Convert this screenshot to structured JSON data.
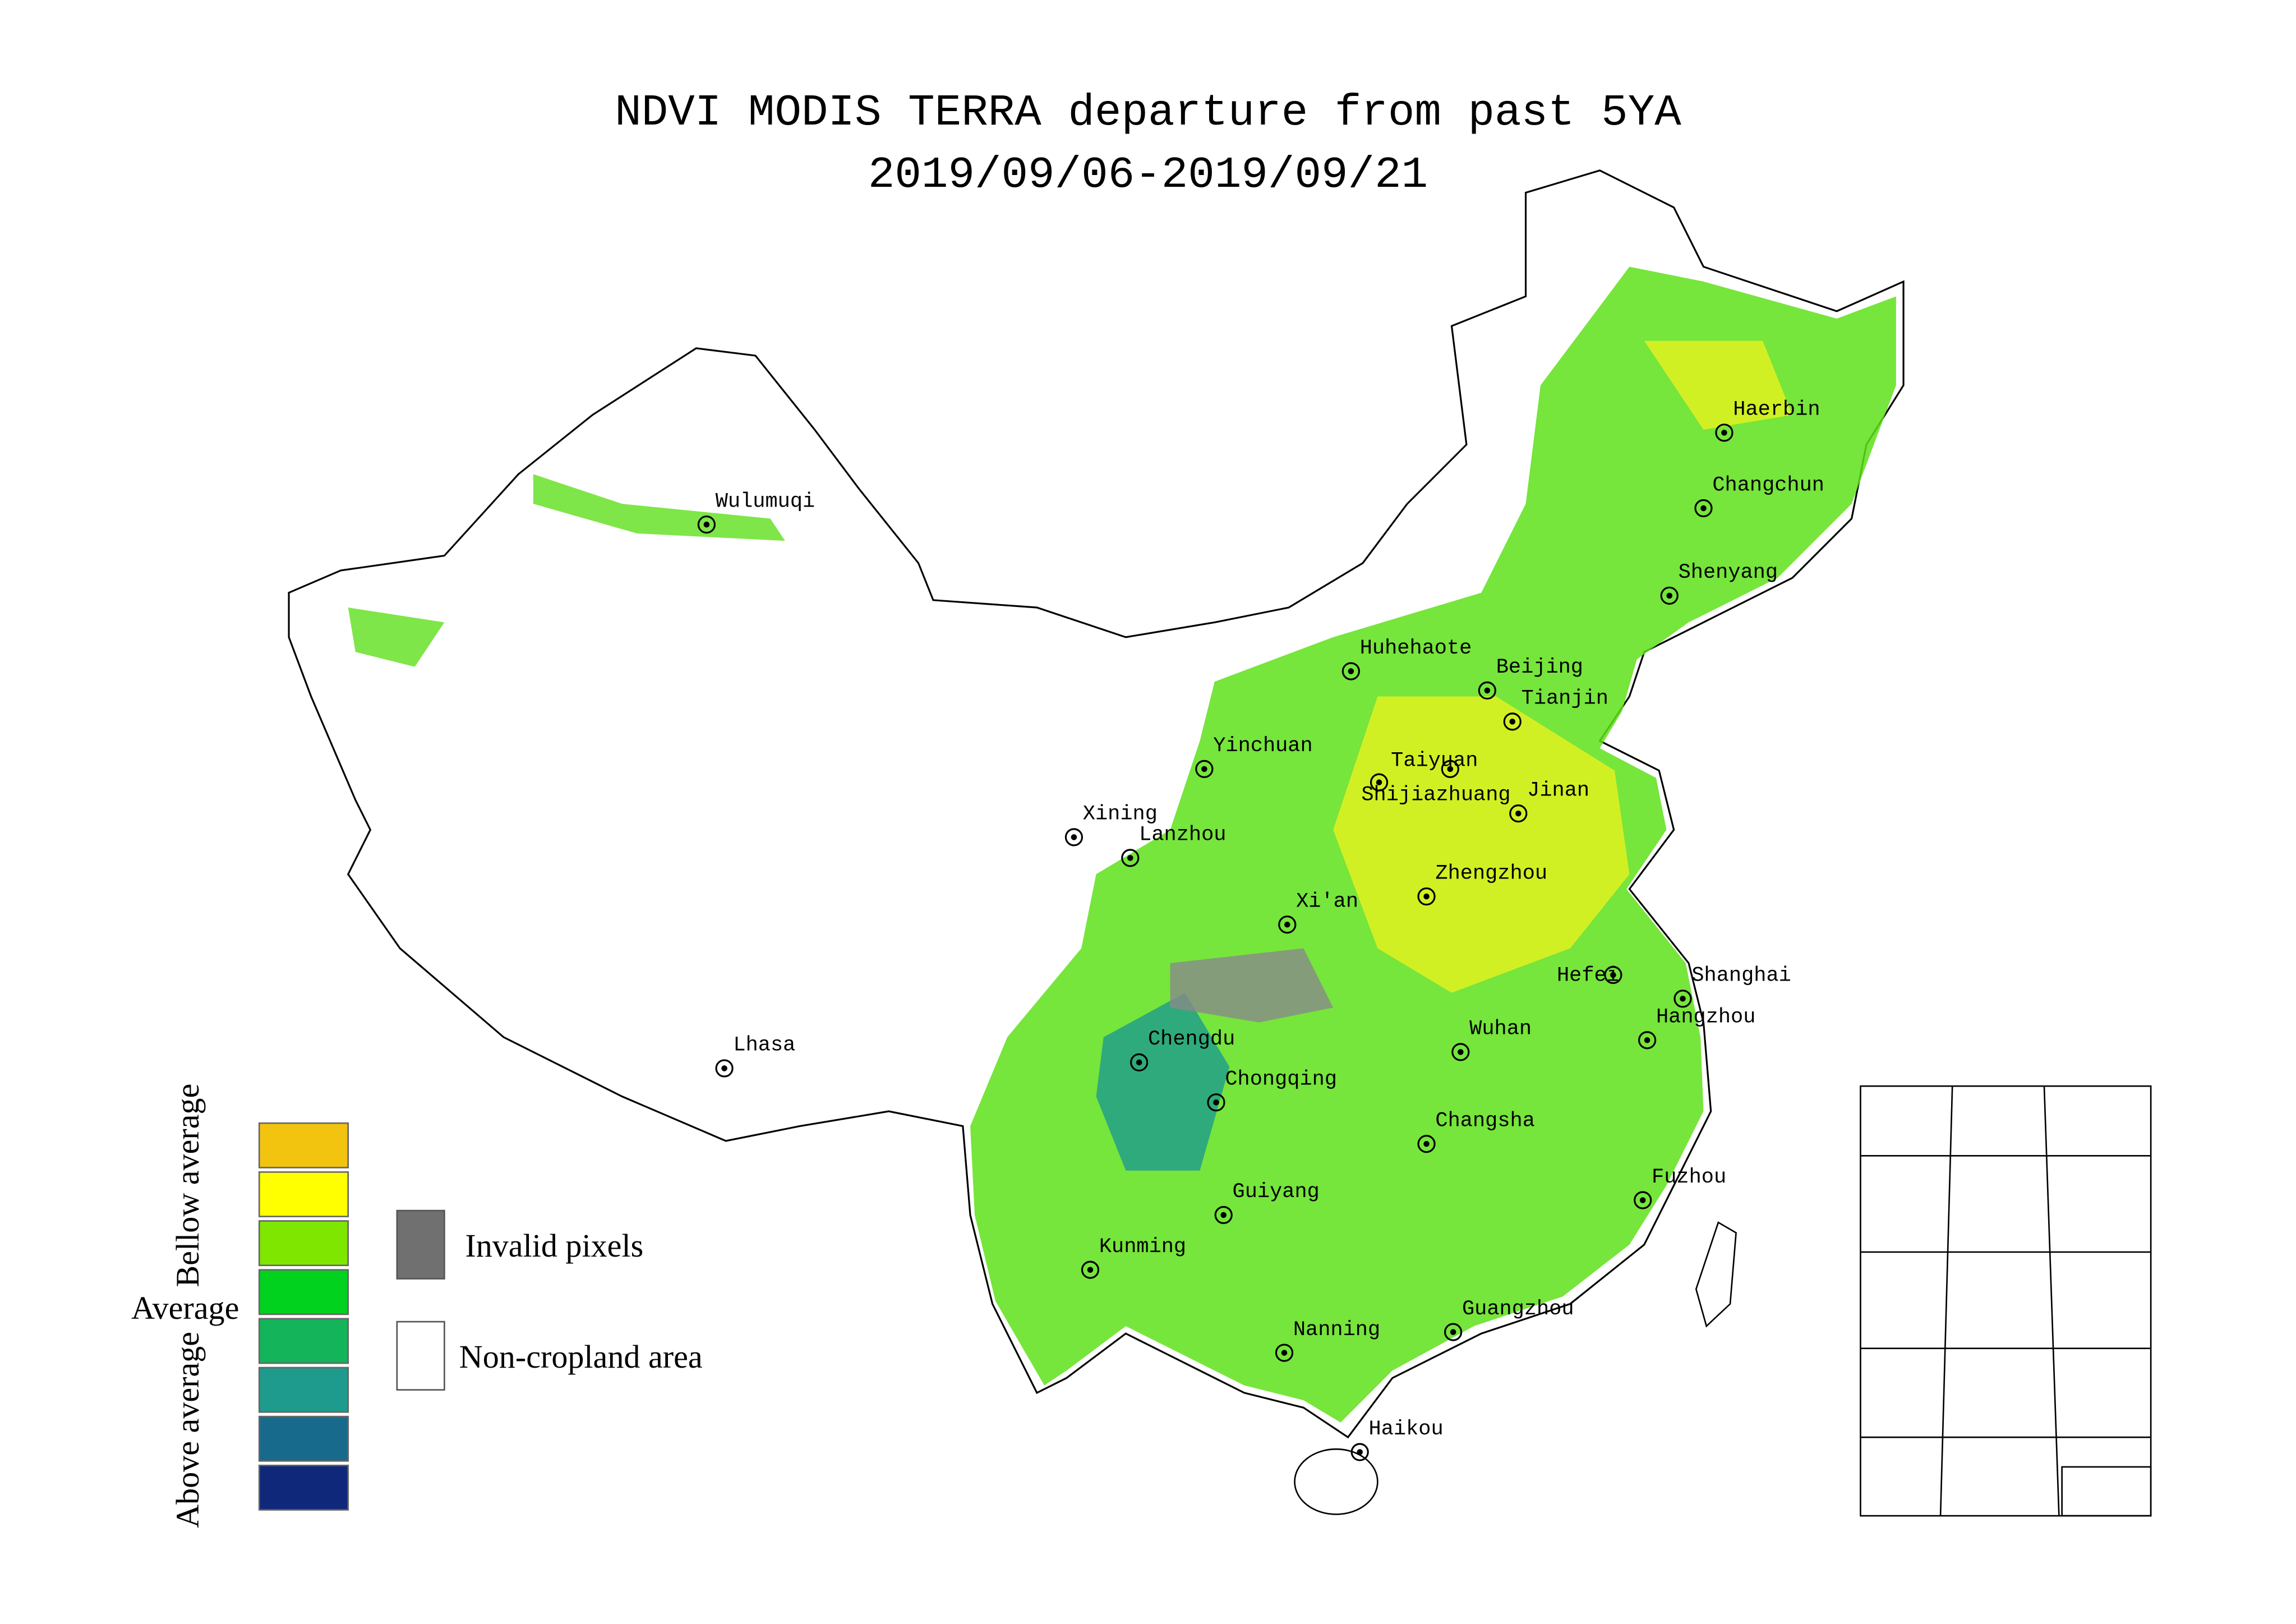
{
  "title": [
    "NDVI MODIS TERRA departure from past 5YA",
    "2019/09/06-2019/09/21"
  ],
  "cities": [
    "Wulumuqi",
    "Lhasa",
    "Xining",
    "Lanzhou",
    "Yinchuan",
    "Huhehaote",
    "Beijing",
    "Tianjin",
    "Taiyuan",
    "Shijiazhuang",
    "Jinan",
    "Zhengzhou",
    "Xi'an",
    "Haerbin",
    "Changchun",
    "Shenyang",
    "Hefei",
    "Shanghai",
    "Hangzhou",
    "Wuhan",
    "Changsha",
    "Fuzhou",
    "Chengdu",
    "Chongqing",
    "Guiyang",
    "Kunming",
    "Nanning",
    "Guangzhou",
    "Haikou"
  ],
  "legend": {
    "scale_colors": [
      "#f2c40f",
      "#ffff00",
      "#7fe600",
      "#00d21e",
      "#14b45a",
      "#1e9b8c",
      "#176a8c",
      "#10287a"
    ],
    "bellow": "Bellow average",
    "average": "Average",
    "above": "Above average",
    "invalid": {
      "label": "Invalid pixels",
      "color": "#707070"
    },
    "noncrop": {
      "label": "Non-cropland area",
      "color": "#ffffff"
    }
  }
}
